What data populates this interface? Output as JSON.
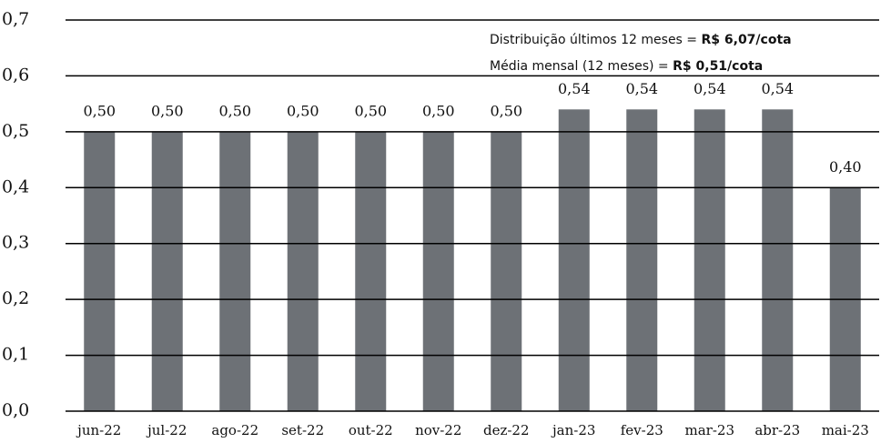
{
  "chart_data": {
    "type": "bar",
    "categories": [
      "jun-22",
      "jul-22",
      "ago-22",
      "set-22",
      "out-22",
      "nov-22",
      "dez-22",
      "jan-23",
      "fev-23",
      "mar-23",
      "abr-23",
      "mai-23"
    ],
    "values": [
      0.5,
      0.5,
      0.5,
      0.5,
      0.5,
      0.5,
      0.5,
      0.54,
      0.54,
      0.54,
      0.54,
      0.4
    ],
    "value_labels": [
      "0,50",
      "0,50",
      "0,50",
      "0,50",
      "0,50",
      "0,50",
      "0,50",
      "0,54",
      "0,54",
      "0,54",
      "0,54",
      "0,40"
    ],
    "color": "#6d7176",
    "ylim": [
      0,
      0.7
    ],
    "yticks": [
      {
        "value": 0,
        "label": "0,0"
      },
      {
        "value": 0.1,
        "label": "0,1"
      },
      {
        "value": 0.2,
        "label": "0,2"
      },
      {
        "value": 0.3,
        "label": "0,3"
      },
      {
        "value": 0.4,
        "label": "0,4"
      },
      {
        "value": 0.5,
        "label": "0,5"
      },
      {
        "value": 0.6,
        "label": "0,6"
      },
      {
        "value": 0.7,
        "label": "0,7"
      }
    ],
    "grid": true,
    "annotations": [
      {
        "text": "Distribuição últimos 12 meses =",
        "highlight": "R$ 6,07/cota"
      },
      {
        "text": "Média mensal (12 meses) =",
        "highlight": "R$ 0,51/cota"
      }
    ]
  }
}
